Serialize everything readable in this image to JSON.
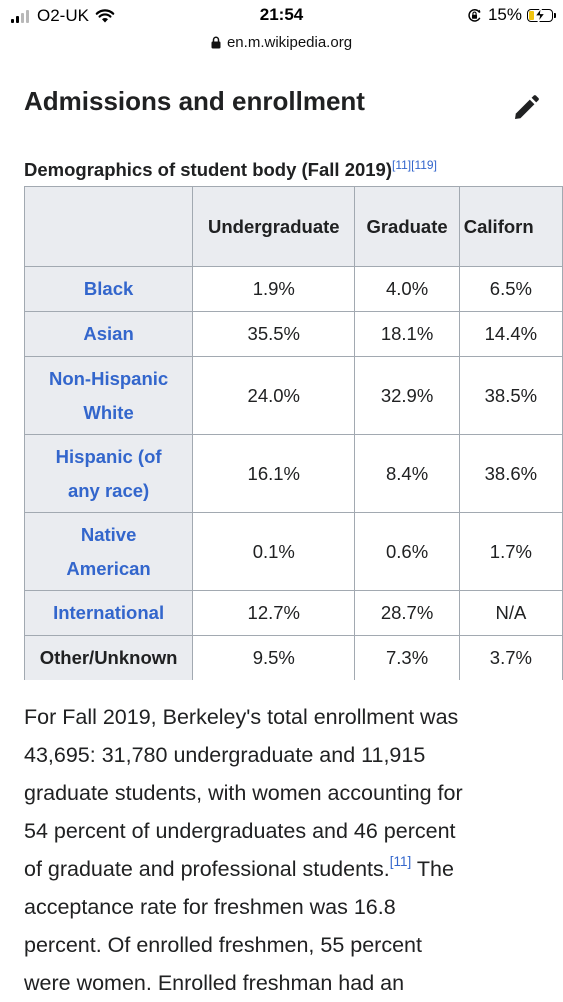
{
  "status_bar": {
    "carrier": "O2-UK",
    "time": "21:54",
    "battery": "15%"
  },
  "browser": {
    "url": "en.m.wikipedia.org"
  },
  "section": {
    "heading": "Admissions and enrollment"
  },
  "table": {
    "caption": "Demographics of student body (Fall 2019)",
    "caption_refs": [
      "[11]",
      "[119]"
    ],
    "columns": [
      "Undergraduate",
      "Graduate",
      "Californ"
    ],
    "rows": [
      {
        "label_lines": [
          "Black"
        ],
        "values": [
          "1.9%",
          "4.0%",
          "6.5%"
        ]
      },
      {
        "label_lines": [
          "Asian"
        ],
        "values": [
          "35.5%",
          "18.1%",
          "14.4%"
        ]
      },
      {
        "label_lines": [
          "Non-Hispanic",
          "White"
        ],
        "values": [
          "24.0%",
          "32.9%",
          "38.5%"
        ]
      },
      {
        "label_lines": [
          "Hispanic (of",
          "any race)"
        ],
        "values": [
          "16.1%",
          "8.4%",
          "38.6%"
        ]
      },
      {
        "label_lines": [
          "Native",
          "American"
        ],
        "values": [
          "0.1%",
          "0.6%",
          "1.7%"
        ]
      },
      {
        "label_lines": [
          "International"
        ],
        "values": [
          "12.7%",
          "28.7%",
          "N/A"
        ]
      },
      {
        "label_lines": [
          "Other/Unknown"
        ],
        "values": [
          "9.5%",
          "7.3%",
          "3.7%"
        ]
      }
    ]
  },
  "paragraph": {
    "l1": "For Fall 2019, Berkeley's total enrollment was",
    "l2": "43,695: 31,780 undergraduate and 11,915",
    "l3": "graduate students, with women accounting for",
    "l4": "54 percent of undergraduates and 46 percent",
    "l5_pre": "of graduate and professional students.",
    "l5_ref": "[11]",
    "l5_post": " The",
    "l6": "acceptance rate for freshmen was 16.8",
    "l7": "percent. Of enrolled freshmen, 55 percent",
    "l8": "were women. Enrolled freshman had an"
  }
}
